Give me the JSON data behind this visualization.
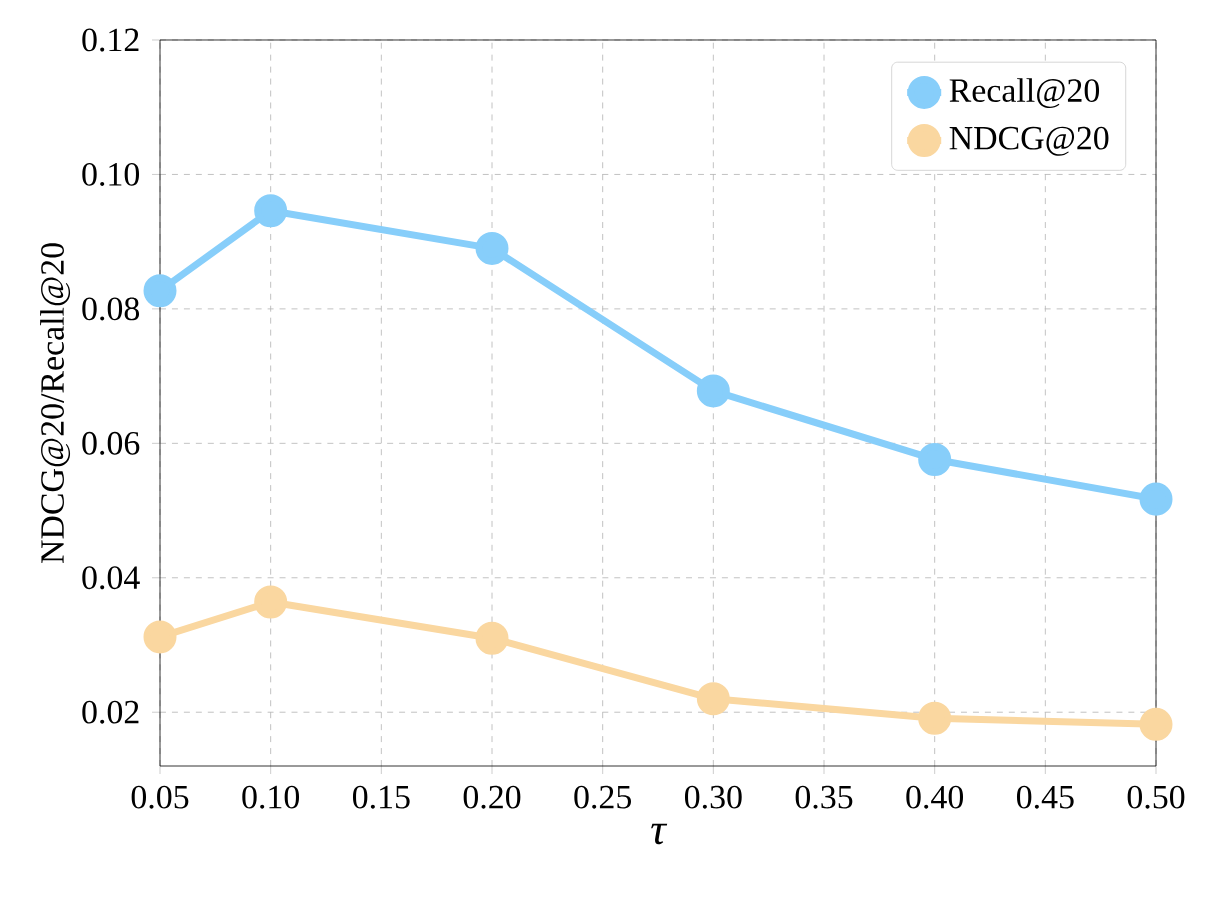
{
  "chart_data": {
    "type": "line",
    "xlabel": "τ",
    "ylabel": "NDCG@20/Recall@20",
    "x": [
      0.05,
      0.1,
      0.2,
      0.3,
      0.4,
      0.5
    ],
    "series": [
      {
        "name": "Recall@20",
        "color": "#87cefa",
        "values": [
          0.0827,
          0.0946,
          0.089,
          0.0678,
          0.0576,
          0.0517
        ]
      },
      {
        "name": "NDCG@20",
        "color": "#fad7a0",
        "values": [
          0.0312,
          0.0364,
          0.031,
          0.022,
          0.0191,
          0.0182
        ]
      }
    ],
    "xlim": [
      0.05,
      0.5
    ],
    "xticks": [
      {
        "value": 0.05,
        "label": "0.05"
      },
      {
        "value": 0.1,
        "label": "0.10"
      },
      {
        "value": 0.15,
        "label": "0.15"
      },
      {
        "value": 0.2,
        "label": "0.20"
      },
      {
        "value": 0.25,
        "label": "0.25"
      },
      {
        "value": 0.3,
        "label": "0.30"
      },
      {
        "value": 0.35,
        "label": "0.35"
      },
      {
        "value": 0.4,
        "label": "0.40"
      },
      {
        "value": 0.45,
        "label": "0.45"
      },
      {
        "value": 0.5,
        "label": "0.50"
      }
    ],
    "ylim": [
      0.012,
      0.12
    ],
    "yticks": [
      {
        "value": 0.02,
        "label": "0.02"
      },
      {
        "value": 0.04,
        "label": "0.04"
      },
      {
        "value": 0.06,
        "label": "0.06"
      },
      {
        "value": 0.08,
        "label": "0.08"
      },
      {
        "value": 0.1,
        "label": "0.10"
      },
      {
        "value": 0.12,
        "label": "0.12"
      }
    ],
    "grid": true,
    "legend": "top right",
    "marker": "circle",
    "line_style": "solid"
  }
}
